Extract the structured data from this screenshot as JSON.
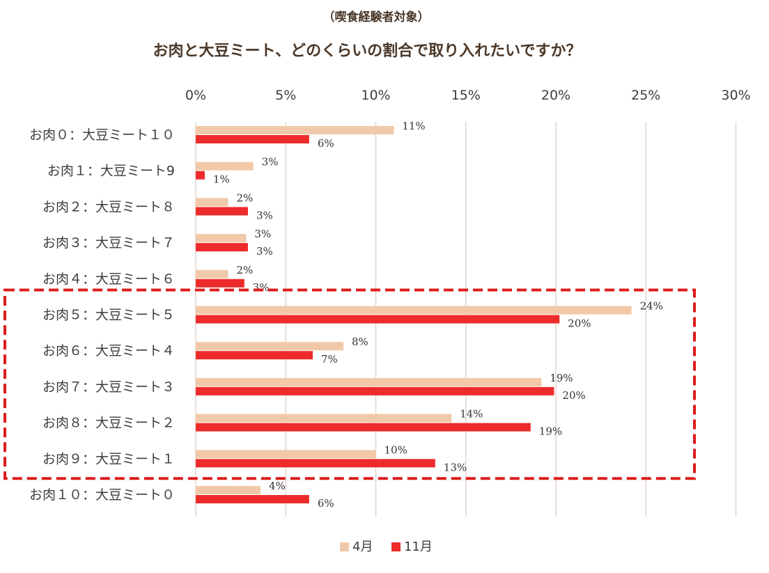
{
  "chart_data": {
    "type": "bar",
    "orientation": "horizontal",
    "subtitle": "（喫食経験者対象）",
    "title": "お肉と大豆ミート、どのくらいの割合で取り入れたいですか？",
    "xlim": [
      0,
      30
    ],
    "x_ticks": [
      "0%",
      "5%",
      "10%",
      "15%",
      "20%",
      "25%",
      "30%"
    ],
    "x_tick_values": [
      0,
      5,
      10,
      15,
      20,
      25,
      30
    ],
    "categories": [
      "お肉０：大豆ミート１０",
      "お肉１：大豆ミート9",
      "お肉２：大豆ミート８",
      "お肉３：大豆ミート７",
      "お肉４：大豆ミート６",
      "お肉５：大豆ミート５",
      "お肉６：大豆ミート４",
      "お肉７：大豆ミート３",
      "お肉８：大豆ミート２",
      "お肉９：大豆ミート１",
      "お肉１０：大豆ミート０"
    ],
    "series": [
      {
        "name": "4月",
        "color": "#f2c9a8",
        "values": [
          11,
          3.2,
          1.8,
          2.8,
          1.8,
          24.2,
          8.2,
          19.2,
          14.2,
          10.0,
          3.6
        ],
        "labels": [
          "11%",
          "3%",
          "2%",
          "3%",
          "2%",
          "24%",
          "8%",
          "19%",
          "14%",
          "10%",
          "4%"
        ]
      },
      {
        "name": "11月",
        "color": "#ee2b2b",
        "values": [
          6.3,
          0.5,
          2.9,
          2.9,
          2.7,
          20.2,
          6.5,
          19.9,
          18.6,
          13.3,
          6.3
        ],
        "labels": [
          "6%",
          "1%",
          "3%",
          "3%",
          "3%",
          "20%",
          "7%",
          "20%",
          "19%",
          "13%",
          "6%"
        ]
      }
    ],
    "grid": true,
    "legend_position": "bottom",
    "highlight": {
      "from_category": 5,
      "to_category": 9,
      "style": "dashed",
      "color": "#dd1c1c"
    }
  }
}
